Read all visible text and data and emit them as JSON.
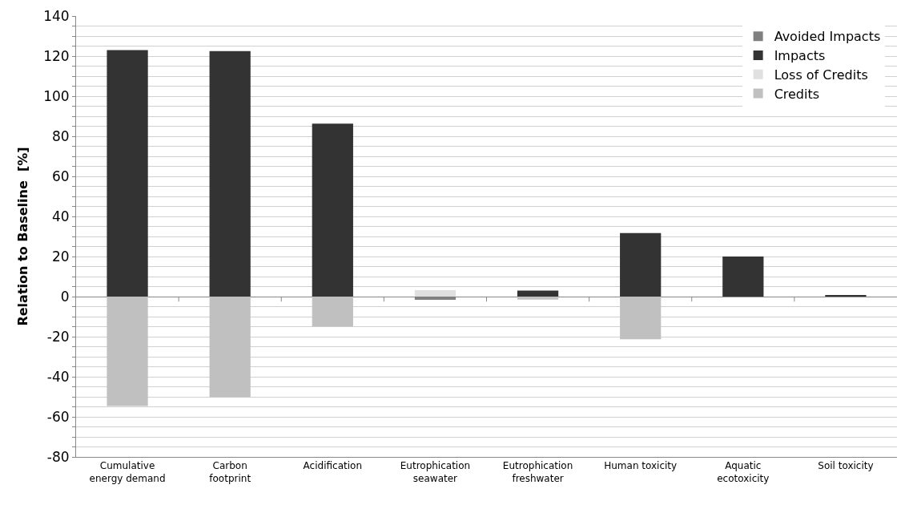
{
  "chart_data": {
    "type": "bar",
    "stacked": true,
    "ylabel": "Relation to Baseline  [%]",
    "categories": [
      "Cumulative energy demand",
      "Carbon footprint",
      "Acidification",
      "Eutrophication seawater",
      "Eutrophication freshwater",
      "Human toxicity",
      "Aquatic ecotoxicity",
      "Soil toxicity"
    ],
    "series": [
      {
        "name": "Avoided Impacts",
        "color": "#808080",
        "values": [
          null,
          null,
          null,
          -1.6,
          null,
          null,
          null,
          null
        ]
      },
      {
        "name": "Impacts",
        "color": "#333333",
        "values": [
          123,
          122.5,
          86.3,
          null,
          3,
          31.7,
          20,
          0.6
        ]
      },
      {
        "name": "Loss of Credits",
        "color": "#e0e0e0",
        "values": [
          null,
          null,
          null,
          3.2,
          null,
          null,
          null,
          null
        ]
      },
      {
        "name": "Credits",
        "color": "#c0c0c0",
        "values": [
          -54.6,
          -50.2,
          -14.9,
          null,
          -1.5,
          -21.3,
          null,
          null
        ]
      }
    ],
    "ylim": [
      -80,
      140
    ],
    "yticks": [
      -80,
      {
        "value": -75,
        "label": null
      },
      {
        "value": -70,
        "label": null
      },
      {
        "value": -65,
        "label": null
      },
      -60,
      {
        "value": -55,
        "label": null
      },
      {
        "value": -50,
        "label": null
      },
      {
        "value": -45,
        "label": null
      },
      -40,
      {
        "value": -35,
        "label": null
      },
      {
        "value": -30,
        "label": null
      },
      {
        "value": -25,
        "label": null
      },
      -20,
      {
        "value": -15,
        "label": null
      },
      {
        "value": -10,
        "label": null
      },
      {
        "value": -5,
        "label": null
      },
      0,
      {
        "value": 5,
        "label": null
      },
      {
        "value": 10,
        "label": null
      },
      {
        "value": 15,
        "label": null
      },
      20,
      {
        "value": 25,
        "label": null
      },
      {
        "value": 30,
        "label": null
      },
      {
        "value": 35,
        "label": null
      },
      40,
      {
        "value": 45,
        "label": null
      },
      {
        "value": 50,
        "label": null
      },
      {
        "value": 55,
        "label": null
      },
      60,
      {
        "value": 65,
        "label": null
      },
      {
        "value": 70,
        "label": null
      },
      {
        "value": 75,
        "label": null
      },
      80,
      {
        "value": 85,
        "label": null
      },
      {
        "value": 90,
        "label": null
      },
      {
        "value": 95,
        "label": null
      },
      100,
      {
        "value": 105,
        "label": null
      },
      {
        "value": 110,
        "label": null
      },
      {
        "value": 115,
        "label": null
      },
      120,
      {
        "value": 125,
        "label": null
      },
      {
        "value": 130,
        "label": null
      },
      {
        "value": 135,
        "label": null
      },
      140
    ],
    "grid": true,
    "legend": "top right"
  }
}
